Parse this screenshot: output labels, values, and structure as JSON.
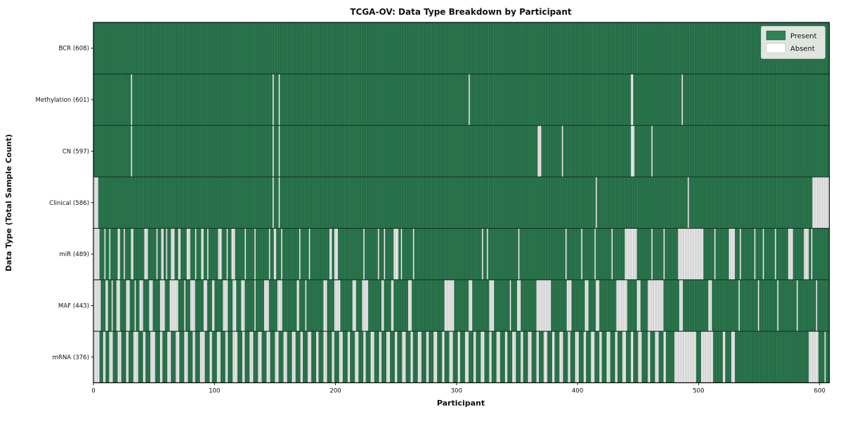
{
  "header": {
    "title": "TCGA-OV: Data Type Breakdown by Participant"
  },
  "axes": {
    "x_label": "Participant",
    "y_label": "Data Type (Total Sample Count)",
    "x_ticks": [
      0,
      100,
      200,
      300,
      400,
      500,
      600
    ]
  },
  "legend": {
    "position": "upper right",
    "entries": [
      {
        "label": "Present",
        "color": "#2f8356"
      },
      {
        "label": "Absent",
        "color": "#ffffff"
      }
    ]
  },
  "colors": {
    "present": "#2f8356",
    "absent": "#ffffff",
    "bar_edge": "rgba(0,0,0,0.34)",
    "row_separator": "#10271a",
    "plot_border": "#000000",
    "legend_bg": "#dfe6e0",
    "legend_border": "#c3cdc5"
  },
  "chart_data": {
    "type": "heatmap",
    "title": "TCGA-OV: Data Type Breakdown by Participant",
    "xlabel": "Participant",
    "ylabel": "Data Type (Total Sample Count)",
    "legend": [
      "Present",
      "Absent"
    ],
    "legend_position": "upper right",
    "grid": false,
    "n_participants": 608,
    "xlim": [
      0,
      608
    ],
    "x_ticks": [
      0,
      100,
      200,
      300,
      400,
      500,
      600
    ],
    "value_encoding": "green = data type present for participant, white = absent",
    "rows": [
      {
        "data_type": "BCR",
        "label": "BCR (608)",
        "present_count": 608,
        "absent_count": 0,
        "absent_ranges": []
      },
      {
        "data_type": "Methylation",
        "label": "Methylation (601)",
        "present_count": 601,
        "absent_count": 7,
        "absent_ranges": [
          [
            31,
            31
          ],
          [
            148,
            148
          ],
          [
            153,
            153
          ],
          [
            310,
            310
          ],
          [
            444,
            445
          ],
          [
            486,
            486
          ]
        ]
      },
      {
        "data_type": "CN",
        "label": "CN (597)",
        "present_count": 597,
        "absent_count": 11,
        "absent_ranges": [
          [
            31,
            31
          ],
          [
            148,
            148
          ],
          [
            153,
            153
          ],
          [
            367,
            369
          ],
          [
            387,
            387
          ],
          [
            444,
            446
          ],
          [
            461,
            461
          ]
        ]
      },
      {
        "data_type": "Clinical",
        "label": "Clinical (586)",
        "present_count": 586,
        "absent_count": 22,
        "absent_ranges": [
          [
            0,
            3
          ],
          [
            148,
            148
          ],
          [
            153,
            153
          ],
          [
            415,
            415
          ],
          [
            491,
            491
          ],
          [
            594,
            607
          ]
        ]
      },
      {
        "data_type": "miR",
        "label": "miR (489)",
        "present_count": 489,
        "absent_count": 119,
        "absent_ranges": [
          [
            0,
            4
          ],
          [
            9,
            9
          ],
          [
            13,
            13
          ],
          [
            20,
            21
          ],
          [
            25,
            25
          ],
          [
            31,
            32
          ],
          [
            42,
            44
          ],
          [
            52,
            52
          ],
          [
            56,
            57
          ],
          [
            60,
            60
          ],
          [
            64,
            66
          ],
          [
            70,
            71
          ],
          [
            77,
            79
          ],
          [
            84,
            84
          ],
          [
            89,
            90
          ],
          [
            94,
            94
          ],
          [
            103,
            105
          ],
          [
            110,
            110
          ],
          [
            114,
            116
          ],
          [
            125,
            125
          ],
          [
            133,
            133
          ],
          [
            145,
            145
          ],
          [
            149,
            150
          ],
          [
            155,
            155
          ],
          [
            170,
            170
          ],
          [
            178,
            178
          ],
          [
            195,
            196
          ],
          [
            199,
            201
          ],
          [
            223,
            223
          ],
          [
            235,
            235
          ],
          [
            240,
            240
          ],
          [
            248,
            251
          ],
          [
            254,
            254
          ],
          [
            264,
            264
          ],
          [
            321,
            321
          ],
          [
            325,
            325
          ],
          [
            351,
            351
          ],
          [
            390,
            390
          ],
          [
            403,
            403
          ],
          [
            414,
            414
          ],
          [
            428,
            428
          ],
          [
            439,
            448
          ],
          [
            461,
            461
          ],
          [
            471,
            471
          ],
          [
            483,
            503
          ],
          [
            513,
            513
          ],
          [
            525,
            529
          ],
          [
            534,
            534
          ],
          [
            546,
            546
          ],
          [
            553,
            553
          ],
          [
            563,
            563
          ],
          [
            574,
            577
          ],
          [
            587,
            590
          ],
          [
            593,
            593
          ]
        ]
      },
      {
        "data_type": "MAF",
        "label": "MAF (443)",
        "present_count": 443,
        "absent_count": 165,
        "absent_ranges": [
          [
            0,
            5
          ],
          [
            10,
            11
          ],
          [
            15,
            15
          ],
          [
            19,
            21
          ],
          [
            27,
            29
          ],
          [
            34,
            34
          ],
          [
            38,
            40
          ],
          [
            46,
            48
          ],
          [
            55,
            58
          ],
          [
            63,
            69
          ],
          [
            75,
            75
          ],
          [
            80,
            83
          ],
          [
            91,
            93
          ],
          [
            98,
            99
          ],
          [
            107,
            110
          ],
          [
            115,
            117
          ],
          [
            122,
            124
          ],
          [
            133,
            133
          ],
          [
            141,
            144
          ],
          [
            152,
            155
          ],
          [
            168,
            169
          ],
          [
            175,
            175
          ],
          [
            190,
            192
          ],
          [
            199,
            203
          ],
          [
            214,
            216
          ],
          [
            222,
            226
          ],
          [
            238,
            239
          ],
          [
            246,
            247
          ],
          [
            260,
            262
          ],
          [
            290,
            297
          ],
          [
            310,
            312
          ],
          [
            327,
            330
          ],
          [
            344,
            344
          ],
          [
            350,
            352
          ],
          [
            366,
            377
          ],
          [
            391,
            394
          ],
          [
            406,
            408
          ],
          [
            415,
            417
          ],
          [
            432,
            440
          ],
          [
            449,
            451
          ],
          [
            458,
            470
          ],
          [
            484,
            486
          ],
          [
            508,
            510
          ],
          [
            533,
            533
          ],
          [
            549,
            549
          ],
          [
            565,
            565
          ],
          [
            581,
            581
          ],
          [
            597,
            597
          ]
        ]
      },
      {
        "data_type": "mRNA",
        "label": "mRNA (376)",
        "present_count": 376,
        "absent_count": 232,
        "absent_ranges": [
          [
            0,
            4
          ],
          [
            8,
            9
          ],
          [
            13,
            15
          ],
          [
            20,
            22
          ],
          [
            27,
            28
          ],
          [
            33,
            36
          ],
          [
            41,
            42
          ],
          [
            47,
            50
          ],
          [
            55,
            56
          ],
          [
            61,
            63
          ],
          [
            68,
            70
          ],
          [
            75,
            77
          ],
          [
            82,
            83
          ],
          [
            88,
            91
          ],
          [
            96,
            97
          ],
          [
            102,
            104
          ],
          [
            109,
            110
          ],
          [
            115,
            118
          ],
          [
            123,
            124
          ],
          [
            129,
            131
          ],
          [
            136,
            138
          ],
          [
            143,
            145
          ],
          [
            150,
            152
          ],
          [
            157,
            159
          ],
          [
            164,
            166
          ],
          [
            171,
            172
          ],
          [
            177,
            179
          ],
          [
            184,
            185
          ],
          [
            190,
            192
          ],
          [
            197,
            198
          ],
          [
            203,
            205
          ],
          [
            210,
            211
          ],
          [
            216,
            218
          ],
          [
            223,
            224
          ],
          [
            229,
            231
          ],
          [
            236,
            237
          ],
          [
            242,
            244
          ],
          [
            249,
            250
          ],
          [
            255,
            257
          ],
          [
            262,
            263
          ],
          [
            268,
            270
          ],
          [
            275,
            276
          ],
          [
            281,
            283
          ],
          [
            288,
            289
          ],
          [
            294,
            296
          ],
          [
            301,
            302
          ],
          [
            307,
            309
          ],
          [
            314,
            315
          ],
          [
            320,
            322
          ],
          [
            327,
            328
          ],
          [
            333,
            335
          ],
          [
            340,
            341
          ],
          [
            346,
            348
          ],
          [
            353,
            354
          ],
          [
            359,
            361
          ],
          [
            366,
            367
          ],
          [
            372,
            374
          ],
          [
            379,
            380
          ],
          [
            385,
            387
          ],
          [
            392,
            393
          ],
          [
            398,
            400
          ],
          [
            405,
            406
          ],
          [
            411,
            413
          ],
          [
            418,
            419
          ],
          [
            424,
            426
          ],
          [
            431,
            432
          ],
          [
            437,
            439
          ],
          [
            444,
            445
          ],
          [
            450,
            452
          ],
          [
            458,
            459
          ],
          [
            464,
            466
          ],
          [
            471,
            472
          ],
          [
            480,
            497
          ],
          [
            502,
            511
          ],
          [
            520,
            521
          ],
          [
            527,
            529
          ],
          [
            591,
            598
          ],
          [
            604,
            604
          ]
        ]
      }
    ]
  }
}
